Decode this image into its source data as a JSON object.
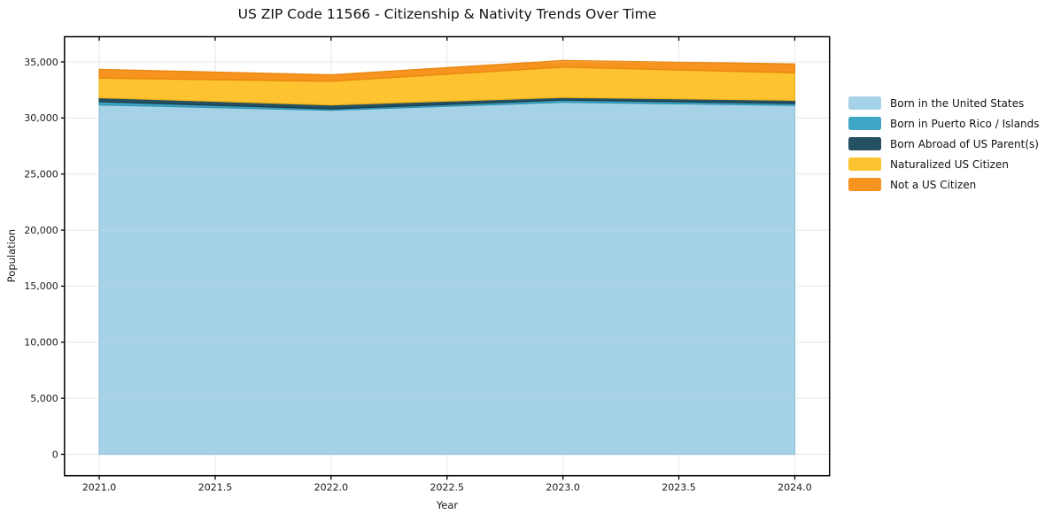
{
  "figure": {
    "title": "US ZIP Code 11566 - Citizenship & Nativity Trends Over Time"
  },
  "chart_data": {
    "type": "area",
    "stacked": true,
    "title": "US ZIP Code 11566 - Citizenship & Nativity Trends Over Time",
    "xlabel": "Year",
    "ylabel": "Population",
    "x": [
      2021,
      2022,
      2023,
      2024
    ],
    "series": [
      {
        "name": "Born in the United States",
        "color": "#a6d2e7",
        "edge_color": "#8fc2dc",
        "values": [
          31170,
          30690,
          31400,
          31130
        ]
      },
      {
        "name": "Born in Puerto Rico / Islands",
        "color": "#3ea6c4",
        "edge_color": "#3093b0",
        "values": [
          280,
          120,
          200,
          160
        ]
      },
      {
        "name": "Born Abroad of US Parent(s)",
        "color": "#245062",
        "edge_color": "#1c4050",
        "values": [
          360,
          360,
          240,
          290
        ]
      },
      {
        "name": "Naturalized US Citizen",
        "color": "#fdc330",
        "edge_color": "#f0b41a",
        "values": [
          1750,
          2110,
          2700,
          2450
        ]
      },
      {
        "name": "Not a US Citizen",
        "color": "#f7941f",
        "edge_color": "#e8860e",
        "values": [
          780,
          570,
          590,
          790
        ]
      }
    ],
    "totals": [
      34340,
      33850,
      35130,
      34820
    ],
    "xlim": [
      2020.85,
      2024.15
    ],
    "ylim": [
      -1910,
      37250
    ],
    "xticks": [
      2021.0,
      2021.5,
      2022.0,
      2022.5,
      2023.0,
      2023.5,
      2024.0
    ],
    "xtick_labels": [
      "2021.0",
      "2021.5",
      "2022.0",
      "2022.5",
      "2023.0",
      "2023.5",
      "2024.0"
    ],
    "yticks": [
      0,
      5000,
      10000,
      15000,
      20000,
      25000,
      30000,
      35000
    ],
    "ytick_labels": [
      "0",
      "5,000",
      "10,000",
      "15,000",
      "20,000",
      "25,000",
      "30,000",
      "35,000"
    ],
    "grid": true,
    "grid_color": "#e7e7e7",
    "spine_color": "#000000",
    "legend_position": "right-outside"
  }
}
